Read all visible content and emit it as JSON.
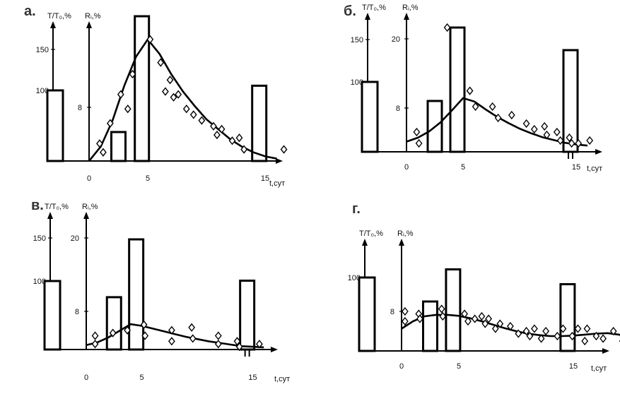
{
  "chart_data": [
    {
      "type": "bar",
      "panel": "а.",
      "ylabel_left": "T/T₀,%",
      "ylabel_right": "Rᵢ,%",
      "xlabel": "t,сут",
      "x_ticks": [
        "0",
        "5",
        "15"
      ],
      "left_ticks": [
        "150",
        "100"
      ],
      "right_ticks": [
        "8"
      ],
      "bars": [
        {
          "x": -2.5,
          "value": 100,
          "axis": "left"
        },
        {
          "x": 2.5,
          "value": 5,
          "axis": "right"
        },
        {
          "x": 4.5,
          "value": 25,
          "axis": "right"
        },
        {
          "x": 14.5,
          "value": 13,
          "axis": "right"
        }
      ],
      "points": [
        [
          0.9,
          3
        ],
        [
          1.2,
          1.5
        ],
        [
          1.8,
          6.5
        ],
        [
          2.7,
          11.5
        ],
        [
          3.3,
          9
        ],
        [
          3.7,
          15
        ],
        [
          5.2,
          21
        ],
        [
          6.1,
          17
        ],
        [
          6.5,
          12
        ],
        [
          6.9,
          14
        ],
        [
          7.2,
          11
        ],
        [
          7.6,
          11.5
        ],
        [
          8.3,
          9
        ],
        [
          8.9,
          8
        ],
        [
          9.6,
          7
        ],
        [
          10.6,
          6
        ],
        [
          10.9,
          4.5
        ],
        [
          11.3,
          5.5
        ],
        [
          12.2,
          3.5
        ],
        [
          12.8,
          4
        ],
        [
          13.2,
          2
        ],
        [
          16.6,
          2
        ]
      ],
      "curve": [
        [
          0,
          0
        ],
        [
          1,
          2.5
        ],
        [
          2,
          7
        ],
        [
          3,
          13
        ],
        [
          4,
          18
        ],
        [
          5,
          21
        ],
        [
          6,
          18.5
        ],
        [
          7,
          15
        ],
        [
          8,
          12
        ],
        [
          9,
          9.5
        ],
        [
          10,
          7.2
        ],
        [
          11,
          5.5
        ],
        [
          12,
          3.8
        ],
        [
          13,
          2.5
        ],
        [
          14,
          1.5
        ],
        [
          15,
          0.8
        ],
        [
          16,
          0.4
        ]
      ]
    },
    {
      "type": "bar",
      "panel": "б.",
      "ylabel_left": "T/T₀,%",
      "ylabel_right": "Rᵢ,%",
      "xlabel": "t,сут",
      "x_ticks": [
        "0",
        "5",
        "15"
      ],
      "left_ticks": [
        "150",
        "100"
      ],
      "right_ticks": [
        "20",
        "8"
      ],
      "bars": [
        {
          "x": -2.5,
          "value": 100,
          "axis": "left"
        },
        {
          "x": 2.5,
          "value": 9,
          "axis": "right"
        },
        {
          "x": 4.5,
          "value": 22,
          "axis": "right"
        },
        {
          "x": 14.5,
          "value": 18,
          "axis": "right"
        }
      ],
      "points": [
        [
          0.9,
          3.5
        ],
        [
          1.1,
          1.5
        ],
        [
          3.6,
          22
        ],
        [
          5.6,
          10.8
        ],
        [
          6.1,
          8
        ],
        [
          7.6,
          8
        ],
        [
          8.1,
          6
        ],
        [
          9.3,
          6.5
        ],
        [
          10.6,
          5
        ],
        [
          11.3,
          4
        ],
        [
          12.2,
          4.5
        ],
        [
          12.4,
          3
        ],
        [
          13.3,
          3.5
        ],
        [
          13.6,
          2
        ],
        [
          14.4,
          2.5
        ],
        [
          14.6,
          1.5
        ],
        [
          15.2,
          1.5
        ],
        [
          16.2,
          2
        ]
      ],
      "curve": [
        [
          0,
          1.8
        ],
        [
          1,
          2.5
        ],
        [
          2,
          3.6
        ],
        [
          3,
          5.2
        ],
        [
          4,
          7.3
        ],
        [
          5,
          9.5
        ],
        [
          6,
          8.9
        ],
        [
          7,
          7.5
        ],
        [
          8,
          6.2
        ],
        [
          9,
          5.1
        ],
        [
          10,
          4.1
        ],
        [
          11,
          3.3
        ],
        [
          12,
          2.6
        ],
        [
          13,
          2.1
        ],
        [
          14,
          1.6
        ],
        [
          15,
          1.3
        ],
        [
          16,
          1.1
        ]
      ]
    },
    {
      "type": "bar",
      "panel": "в.",
      "ylabel_left": "T/T₀,%",
      "ylabel_right": "Rᵢ,%",
      "xlabel": "t,сут",
      "x_ticks": [
        "0",
        "5",
        "15"
      ],
      "left_ticks": [
        "150",
        "100"
      ],
      "right_ticks": [
        "20",
        "8"
      ],
      "bars": [
        {
          "x": -2.5,
          "value": 100,
          "axis": "left"
        },
        {
          "x": 2.5,
          "value": 9.5,
          "axis": "right"
        },
        {
          "x": 4.5,
          "value": 20,
          "axis": "right"
        },
        {
          "x": 14.5,
          "value": 12.5,
          "axis": "right"
        }
      ],
      "points": [
        [
          0.8,
          2.5
        ],
        [
          0.8,
          1
        ],
        [
          2.4,
          3
        ],
        [
          3.7,
          3.5
        ],
        [
          5.2,
          4.5
        ],
        [
          5.3,
          2.5
        ],
        [
          7.7,
          3.5
        ],
        [
          7.7,
          1.5
        ],
        [
          9.5,
          4
        ],
        [
          9.6,
          2
        ],
        [
          11.9,
          2.5
        ],
        [
          11.9,
          1
        ],
        [
          13.6,
          1.5
        ],
        [
          13.8,
          0.5
        ],
        [
          15.6,
          1
        ]
      ],
      "curve": [
        [
          0,
          0.8
        ],
        [
          1,
          1.3
        ],
        [
          2,
          2.2
        ],
        [
          3,
          3.4
        ],
        [
          4,
          4.6
        ],
        [
          5,
          4.3
        ],
        [
          6,
          3.8
        ],
        [
          7,
          3.3
        ],
        [
          8,
          2.8
        ],
        [
          9,
          2.3
        ],
        [
          10,
          1.9
        ],
        [
          11,
          1.5
        ],
        [
          12,
          1.2
        ],
        [
          13,
          0.9
        ],
        [
          14,
          0.6
        ],
        [
          15,
          0.5
        ],
        [
          16,
          0.4
        ]
      ]
    },
    {
      "type": "bar",
      "panel": "г.",
      "ylabel_left": "T/T₀,%",
      "ylabel_right": "Rᵢ,%",
      "xlabel": "t,сут",
      "x_ticks": [
        "0",
        "5",
        "15"
      ],
      "left_ticks": [
        "100"
      ],
      "right_ticks": [
        "8"
      ],
      "bars": [
        {
          "x": -2.5,
          "value": 100,
          "axis": "left"
        },
        {
          "x": 2.5,
          "value": 10,
          "axis": "right"
        },
        {
          "x": 4.5,
          "value": 16.5,
          "axis": "right"
        },
        {
          "x": 14.5,
          "value": 13.5,
          "axis": "right"
        }
      ],
      "points": [
        [
          0.3,
          8
        ],
        [
          0.3,
          6
        ],
        [
          1.5,
          7.5
        ],
        [
          1.6,
          6.5
        ],
        [
          3.5,
          8.5
        ],
        [
          3.6,
          7
        ],
        [
          5.5,
          7.5
        ],
        [
          5.8,
          6
        ],
        [
          6.4,
          6.5
        ],
        [
          7,
          7
        ],
        [
          7.3,
          5.5
        ],
        [
          7.6,
          6.5
        ],
        [
          8.2,
          4.5
        ],
        [
          8.6,
          5.5
        ],
        [
          9.5,
          5
        ],
        [
          10.2,
          3.5
        ],
        [
          10.9,
          4
        ],
        [
          11.2,
          3
        ],
        [
          11.6,
          4.5
        ],
        [
          12.2,
          2.5
        ],
        [
          12.6,
          4
        ],
        [
          13.6,
          3
        ],
        [
          14.1,
          4.5
        ],
        [
          14.9,
          3
        ],
        [
          15.4,
          4.5
        ],
        [
          16,
          2
        ],
        [
          16.2,
          4.5
        ],
        [
          17,
          3
        ],
        [
          17.6,
          2.5
        ],
        [
          18.5,
          4
        ],
        [
          19.3,
          2
        ],
        [
          19.6,
          4.5
        ],
        [
          20.5,
          3.5
        ]
      ],
      "curve": [
        [
          0,
          4.5
        ],
        [
          1,
          6
        ],
        [
          2,
          7
        ],
        [
          3,
          7.3
        ],
        [
          4,
          7.3
        ],
        [
          5,
          7.1
        ],
        [
          6,
          6.6
        ],
        [
          7,
          6
        ],
        [
          8,
          5.3
        ],
        [
          9,
          4.6
        ],
        [
          10,
          4
        ],
        [
          11,
          3.5
        ],
        [
          12,
          3.2
        ],
        [
          13,
          3
        ],
        [
          14,
          3
        ],
        [
          15,
          3.1
        ],
        [
          16,
          3.3
        ],
        [
          17,
          3.5
        ],
        [
          18,
          3.6
        ],
        [
          19,
          3.3
        ],
        [
          20,
          2.5
        ],
        [
          21,
          1.2
        ]
      ]
    }
  ]
}
